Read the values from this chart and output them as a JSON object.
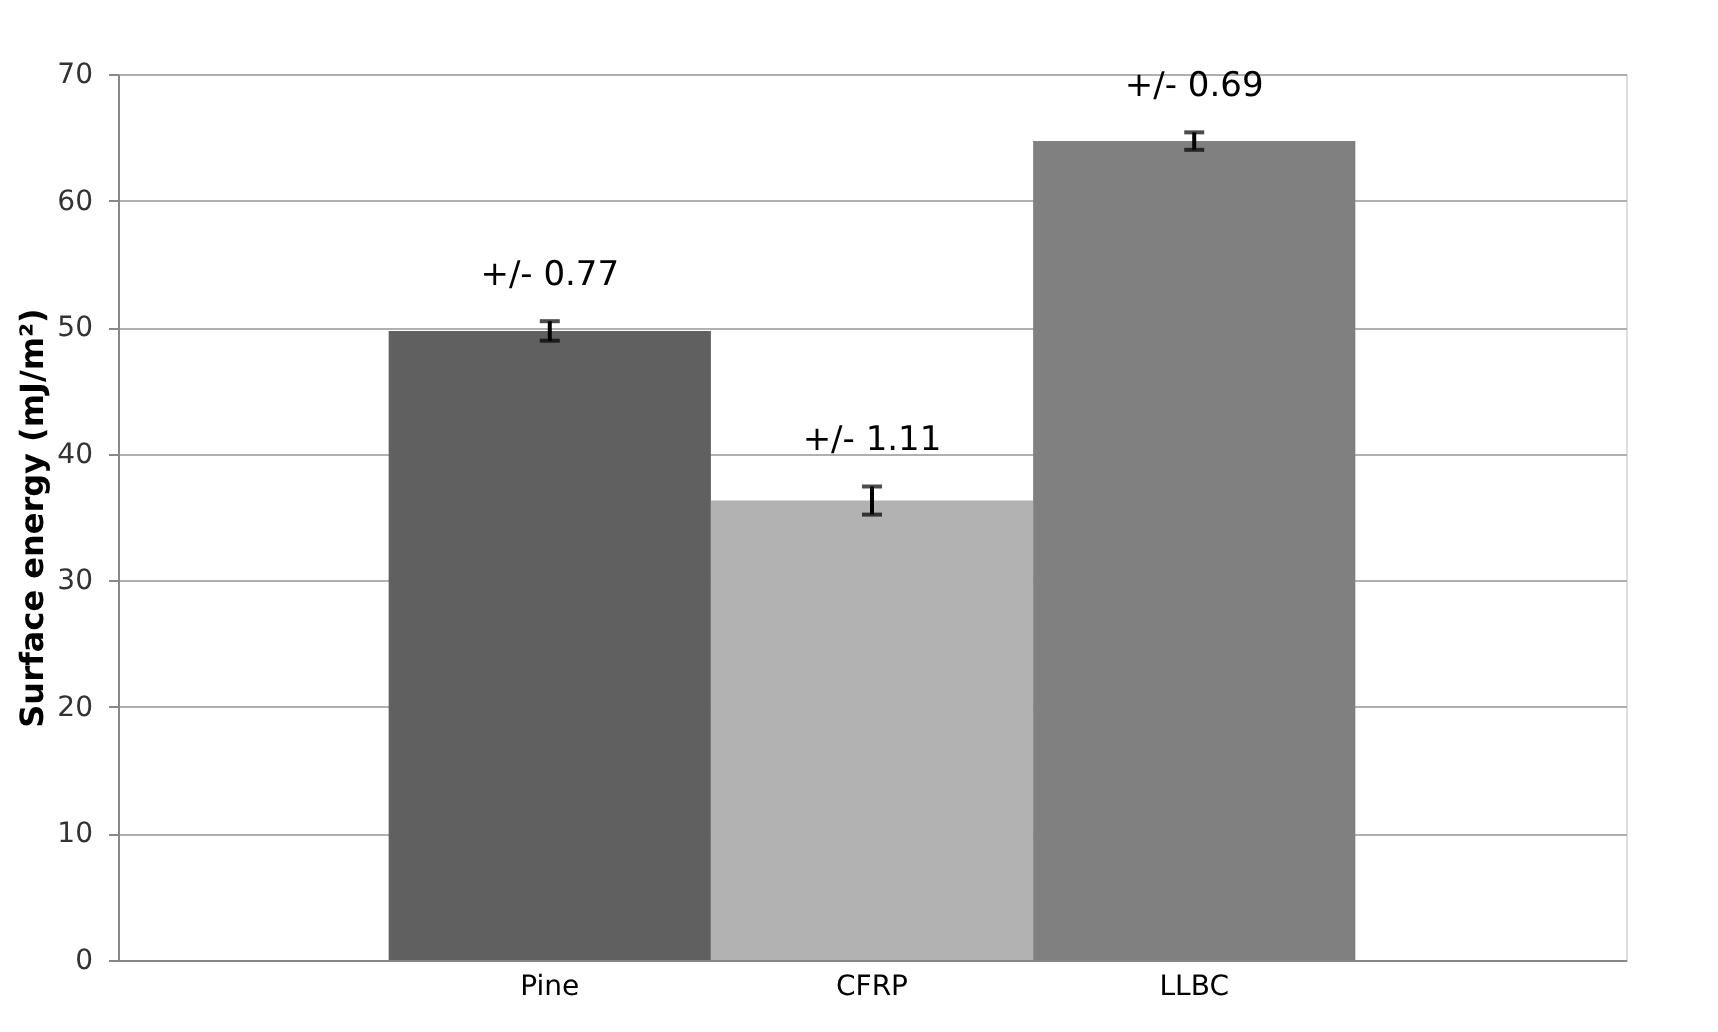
{
  "chart_data": {
    "type": "bar",
    "ylabel": "Surface energy (mJ/m²)",
    "categories": [
      "Pine",
      "CFRP",
      "LLBC"
    ],
    "values": [
      49.7,
      36.3,
      64.7
    ],
    "errors": [
      0.77,
      1.11,
      0.69
    ],
    "colors": [
      "#606060",
      "#b2b2b2",
      "#808080"
    ],
    "ylim": [
      0,
      70
    ],
    "yticks": [
      0,
      10,
      20,
      30,
      40,
      50,
      60,
      70
    ],
    "grid": "y",
    "annotations": [
      "+/- 0.77",
      "+/- 1.11",
      "+/- 0.69"
    ]
  }
}
